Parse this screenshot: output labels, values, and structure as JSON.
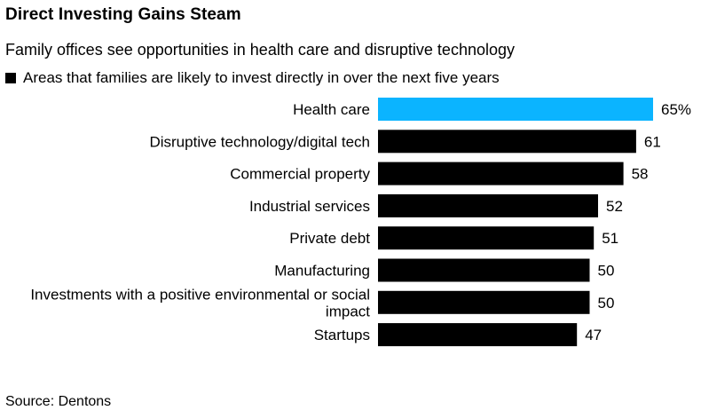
{
  "title": "Direct Investing Gains Steam",
  "subtitle": "Family offices see opportunities in health care and disruptive technology",
  "legend": {
    "label": "Areas that families are likely to invest directly in over the next five years",
    "color": "#000000"
  },
  "source": "Source: Dentons",
  "chart_data": {
    "type": "bar",
    "orientation": "horizontal",
    "categories": [
      "Health care",
      "Disruptive technology/digital tech",
      "Commercial property",
      "Industrial services",
      "Private debt",
      "Manufacturing",
      [
        "Investments with a positive environmental or social",
        "impact"
      ],
      "Startups"
    ],
    "values": [
      65,
      61,
      58,
      52,
      51,
      50,
      50,
      47
    ],
    "value_labels": [
      "65%",
      "61",
      "58",
      "52",
      "51",
      "50",
      "50",
      "47"
    ],
    "colors": [
      "#0BB4FF",
      "#000000",
      "#000000",
      "#000000",
      "#000000",
      "#000000",
      "#000000",
      "#000000"
    ],
    "xlim": [
      0,
      65
    ],
    "grid": false
  }
}
